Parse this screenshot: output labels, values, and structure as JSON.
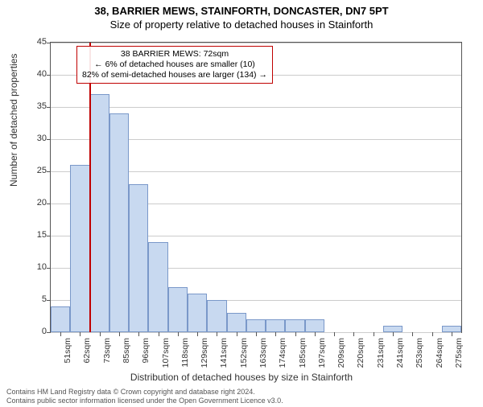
{
  "title_main": "38, BARRIER MEWS, STAINFORTH, DONCASTER, DN7 5PT",
  "title_sub": "Size of property relative to detached houses in Stainforth",
  "ylabel": "Number of detached properties",
  "xlabel": "Distribution of detached houses by size in Stainforth",
  "footer_line1": "Contains HM Land Registry data © Crown copyright and database right 2024.",
  "footer_line2": "Contains public sector information licensed under the Open Government Licence v3.0.",
  "chart": {
    "type": "histogram",
    "ylim": [
      0,
      45
    ],
    "yticks": [
      0,
      5,
      10,
      15,
      20,
      25,
      30,
      35,
      40,
      45
    ],
    "xticks": [
      "51sqm",
      "62sqm",
      "73sqm",
      "85sqm",
      "96sqm",
      "107sqm",
      "118sqm",
      "129sqm",
      "141sqm",
      "152sqm",
      "163sqm",
      "174sqm",
      "185sqm",
      "197sqm",
      "209sqm",
      "220sqm",
      "231sqm",
      "241sqm",
      "253sqm",
      "264sqm",
      "275sqm"
    ],
    "bars": [
      4,
      26,
      37,
      34,
      23,
      14,
      7,
      6,
      5,
      3,
      2,
      2,
      2,
      2,
      0,
      0,
      0,
      1,
      0,
      0,
      1
    ],
    "bar_fill": "#c8d9f0",
    "bar_stroke": "#7a98c9",
    "grid_color": "#cccccc",
    "axis_color": "#555555",
    "background_color": "#ffffff",
    "vline_color": "#c00000",
    "vline_at_sqm": 72,
    "annotation": {
      "line1": "38 BARRIER MEWS: 72sqm",
      "line2": "← 6% of detached houses are smaller (10)",
      "line3": "82% of semi-detached houses are larger (134) →"
    }
  }
}
